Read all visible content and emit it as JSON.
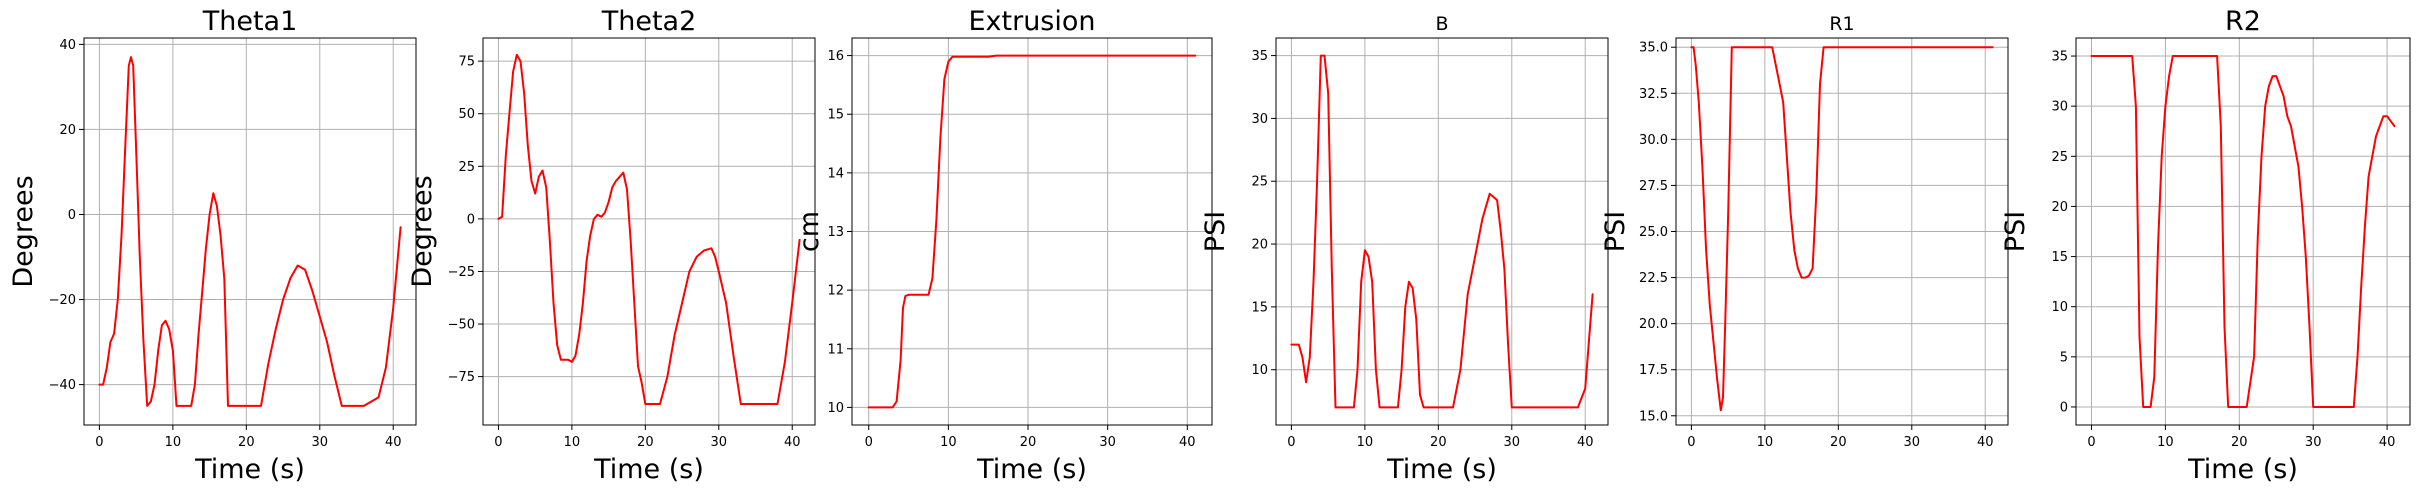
{
  "figure": {
    "colors": {
      "series": "#ff0000",
      "grid": "#b0b0b0",
      "axis": "#000000",
      "background": "#ffffff"
    }
  },
  "chart_data": [
    {
      "type": "line",
      "title": "Theta1",
      "xlabel": "Time (s)",
      "ylabel": "Degrees",
      "xlim": [
        -2.1,
        43.1
      ],
      "ylim": [
        -49.5,
        41.5
      ],
      "xticks": [
        0,
        10,
        20,
        30,
        40
      ],
      "yticks": [
        -40,
        -20,
        0,
        20,
        40
      ],
      "grid": true,
      "series": [
        {
          "color": "#ff0000",
          "x": [
            0,
            0.5,
            1,
            1.5,
            2,
            2.5,
            3,
            3.5,
            4,
            4.3,
            4.6,
            5,
            5.5,
            6,
            6.5,
            7,
            7.5,
            8,
            8.5,
            9,
            9.5,
            10,
            10.5,
            11,
            11.5,
            12,
            12.5,
            13,
            13.5,
            14,
            14.5,
            15,
            15.5,
            16,
            16.5,
            17,
            17.5,
            18,
            18.5,
            19,
            20,
            21,
            22,
            23,
            24,
            25,
            26,
            27,
            28,
            29,
            30,
            31,
            32,
            33,
            34,
            35,
            36,
            37,
            38,
            39,
            40,
            41
          ],
          "y": [
            -40,
            -40,
            -36,
            -30,
            -28,
            -20,
            -5,
            15,
            35,
            37,
            35,
            15,
            -10,
            -30,
            -45,
            -44,
            -40,
            -32,
            -26,
            -25,
            -27,
            -32,
            -45,
            -45,
            -45,
            -45,
            -45,
            -40,
            -28,
            -18,
            -8,
            0,
            5,
            2,
            -5,
            -15,
            -45,
            -45,
            -45,
            -45,
            -45,
            -45,
            -45,
            -35,
            -27,
            -20,
            -15,
            -12,
            -13,
            -18,
            -24,
            -30,
            -38,
            -45,
            -45,
            -45,
            -45,
            -44,
            -43,
            -36,
            -22,
            -3
          ]
        }
      ]
    },
    {
      "type": "line",
      "title": "Theta2",
      "xlabel": "Time (s)",
      "ylabel": "Degrees",
      "xlim": [
        -2.1,
        43.1
      ],
      "ylim": [
        -98,
        86
      ],
      "xticks": [
        0,
        10,
        20,
        30,
        40
      ],
      "yticks": [
        -75,
        -50,
        -25,
        0,
        25,
        50,
        75
      ],
      "grid": true,
      "series": [
        {
          "color": "#ff0000",
          "x": [
            0,
            0.5,
            1,
            1.5,
            2,
            2.5,
            3,
            3.5,
            4,
            4.5,
            5,
            5.5,
            6,
            6.5,
            7,
            7.5,
            8,
            8.5,
            9,
            9.5,
            10,
            10.5,
            11,
            11.5,
            12,
            12.5,
            13,
            13.5,
            14,
            14.5,
            15,
            15.5,
            16,
            16.5,
            17,
            17.5,
            18,
            18.5,
            19,
            19.5,
            20,
            20.5,
            21,
            22,
            23,
            24,
            25,
            26,
            27,
            28,
            29,
            29.5,
            30,
            31,
            32,
            33,
            34,
            35,
            36,
            37,
            38,
            39,
            40,
            41
          ],
          "y": [
            0,
            1,
            30,
            50,
            70,
            78,
            75,
            60,
            35,
            18,
            12,
            20,
            23,
            15,
            -10,
            -40,
            -60,
            -67,
            -67,
            -67,
            -68,
            -65,
            -55,
            -40,
            -20,
            -8,
            0,
            2,
            1,
            3,
            8,
            15,
            18,
            20,
            22,
            14,
            -10,
            -40,
            -70,
            -78,
            -88,
            -88,
            -88,
            -88,
            -75,
            -55,
            -40,
            -25,
            -18,
            -15,
            -14,
            -18,
            -25,
            -40,
            -65,
            -88,
            -88,
            -88,
            -88,
            -88,
            -88,
            -68,
            -40,
            -10
          ]
        }
      ]
    },
    {
      "type": "line",
      "title": "Extrusion",
      "xlabel": "Time (s)",
      "ylabel": "cm",
      "xlim": [
        -2.1,
        43.1
      ],
      "ylim": [
        9.7,
        16.3
      ],
      "xticks": [
        0,
        10,
        20,
        30,
        40
      ],
      "yticks": [
        10,
        11,
        12,
        13,
        14,
        15,
        16
      ],
      "grid": true,
      "series": [
        {
          "color": "#ff0000",
          "x": [
            0,
            1,
            2,
            3,
            3.5,
            4,
            4.3,
            4.6,
            5,
            6,
            7,
            7.5,
            8,
            8.5,
            9,
            9.5,
            10,
            10.5,
            11,
            12,
            13,
            14,
            15,
            16,
            18,
            20,
            25,
            30,
            35,
            40,
            41
          ],
          "y": [
            10,
            10,
            10,
            10,
            10.1,
            10.8,
            11.7,
            11.9,
            11.92,
            11.92,
            11.92,
            11.92,
            12.2,
            13.2,
            14.6,
            15.6,
            15.9,
            15.98,
            15.98,
            15.98,
            15.98,
            15.98,
            15.98,
            16,
            16,
            16,
            16,
            16,
            16,
            16,
            16
          ]
        }
      ]
    },
    {
      "type": "line",
      "title": "B",
      "xlabel": "Time (s)",
      "ylabel": "PSI",
      "xlim": [
        -2.1,
        43.1
      ],
      "ylim": [
        5.6,
        36.4
      ],
      "xticks": [
        0,
        10,
        20,
        30,
        40
      ],
      "yticks": [
        10,
        15,
        20,
        25,
        30,
        35
      ],
      "grid": true,
      "series": [
        {
          "color": "#ff0000",
          "x": [
            0,
            0.5,
            1,
            1.5,
            2,
            2.5,
            3,
            3.5,
            4,
            4.5,
            5,
            5.5,
            6,
            6.5,
            7,
            7.5,
            8,
            8.5,
            9,
            9.5,
            10,
            10.5,
            11,
            11.5,
            12,
            12.5,
            13,
            13.5,
            14,
            14.5,
            15,
            15.5,
            16,
            16.5,
            17,
            17.5,
            18,
            18.5,
            19,
            19.5,
            20,
            21,
            22,
            23,
            24,
            25,
            26,
            27,
            28,
            28.5,
            29,
            29.5,
            30,
            30.5,
            31,
            31.5,
            32,
            33,
            34,
            35,
            36,
            37,
            38,
            39,
            40,
            41
          ],
          "y": [
            12,
            12,
            12,
            11,
            9,
            11,
            17,
            25,
            35,
            35,
            32,
            18,
            7,
            7,
            7,
            7,
            7,
            7,
            10,
            17,
            19.5,
            19,
            17,
            10,
            7,
            7,
            7,
            7,
            7,
            7,
            10,
            15,
            17,
            16.5,
            14,
            8,
            7,
            7,
            7,
            7,
            7,
            7,
            7,
            10,
            16,
            19,
            22,
            24,
            23.5,
            21,
            18,
            12,
            7,
            7,
            7,
            7,
            7,
            7,
            7,
            7,
            7,
            7,
            7,
            7,
            8.5,
            16
          ]
        }
      ]
    },
    {
      "type": "line",
      "title": "R1",
      "xlabel": "",
      "ylabel": "PSI",
      "xlim": [
        -2.1,
        43.1
      ],
      "ylim": [
        14.5,
        35.5
      ],
      "xticks": [
        0,
        10,
        20,
        30,
        40
      ],
      "yticks": [
        15.0,
        17.5,
        20.0,
        22.5,
        25.0,
        27.5,
        30.0,
        32.5,
        35.0
      ],
      "ytick_labels": [
        "15.0",
        "17.5",
        "20.0",
        "22.5",
        "25.0",
        "27.5",
        "30.0",
        "32.5",
        "35.0"
      ],
      "grid": true,
      "series": [
        {
          "color": "#ff0000",
          "x": [
            0,
            0.3,
            0.6,
            1,
            1.5,
            2,
            2.5,
            3,
            3.5,
            4,
            4.3,
            4.6,
            5,
            5.5,
            6,
            6.5,
            7,
            8,
            9,
            10,
            11,
            11.5,
            12,
            12.5,
            13,
            13.5,
            14,
            14.5,
            15,
            15.5,
            16,
            16.5,
            17,
            17.5,
            18,
            19,
            20,
            25,
            30,
            35,
            40,
            41
          ],
          "y": [
            35,
            35,
            34,
            32,
            28.5,
            24,
            21,
            19,
            17,
            15.3,
            16,
            20,
            26,
            35,
            35,
            35,
            35,
            35,
            35,
            35,
            35,
            34,
            33,
            32,
            29,
            26,
            24,
            23,
            22.5,
            22.5,
            22.6,
            23,
            27,
            33,
            35,
            35,
            35,
            35,
            35,
            35,
            35,
            35
          ]
        }
      ]
    },
    {
      "type": "line",
      "title": "R2",
      "xlabel": "Time (s)",
      "ylabel": "PSI",
      "xlim": [
        -2.1,
        43.1
      ],
      "ylim": [
        -1.8,
        36.8
      ],
      "xticks": [
        0,
        10,
        20,
        30,
        40
      ],
      "yticks": [
        0,
        5,
        10,
        15,
        20,
        25,
        30,
        35
      ],
      "grid": true,
      "series": [
        {
          "color": "#ff0000",
          "x": [
            0,
            1,
            2,
            3,
            4,
            5,
            5.5,
            6,
            6.5,
            7,
            7.5,
            8,
            8.5,
            9,
            9.5,
            10,
            10.5,
            11,
            11.5,
            12,
            13,
            14,
            15,
            16,
            16.5,
            17,
            17.5,
            18,
            18.5,
            19,
            20,
            21,
            22,
            22.5,
            23,
            23.5,
            24,
            24.5,
            25,
            25.5,
            26,
            26.5,
            27,
            27.5,
            28,
            28.5,
            29,
            29.5,
            30,
            30.5,
            31,
            31.5,
            32,
            33,
            34,
            35,
            35.5,
            36,
            36.5,
            37,
            37.5,
            38,
            38.5,
            39,
            39.5,
            40,
            40.5,
            41
          ],
          "y": [
            35,
            35,
            35,
            35,
            35,
            35,
            35,
            30,
            7,
            0,
            0,
            0,
            3,
            16,
            25,
            30,
            33,
            35,
            35,
            35,
            35,
            35,
            35,
            35,
            35,
            35,
            28,
            8,
            0,
            0,
            0,
            0,
            5,
            17,
            25,
            30,
            32,
            33,
            33,
            32,
            31,
            29,
            28,
            26,
            24,
            20,
            15,
            8,
            0,
            0,
            0,
            0,
            0,
            0,
            0,
            0,
            0,
            5,
            12,
            18,
            23,
            25,
            27,
            28,
            29,
            29,
            28.5,
            28
          ]
        }
      ]
    }
  ]
}
